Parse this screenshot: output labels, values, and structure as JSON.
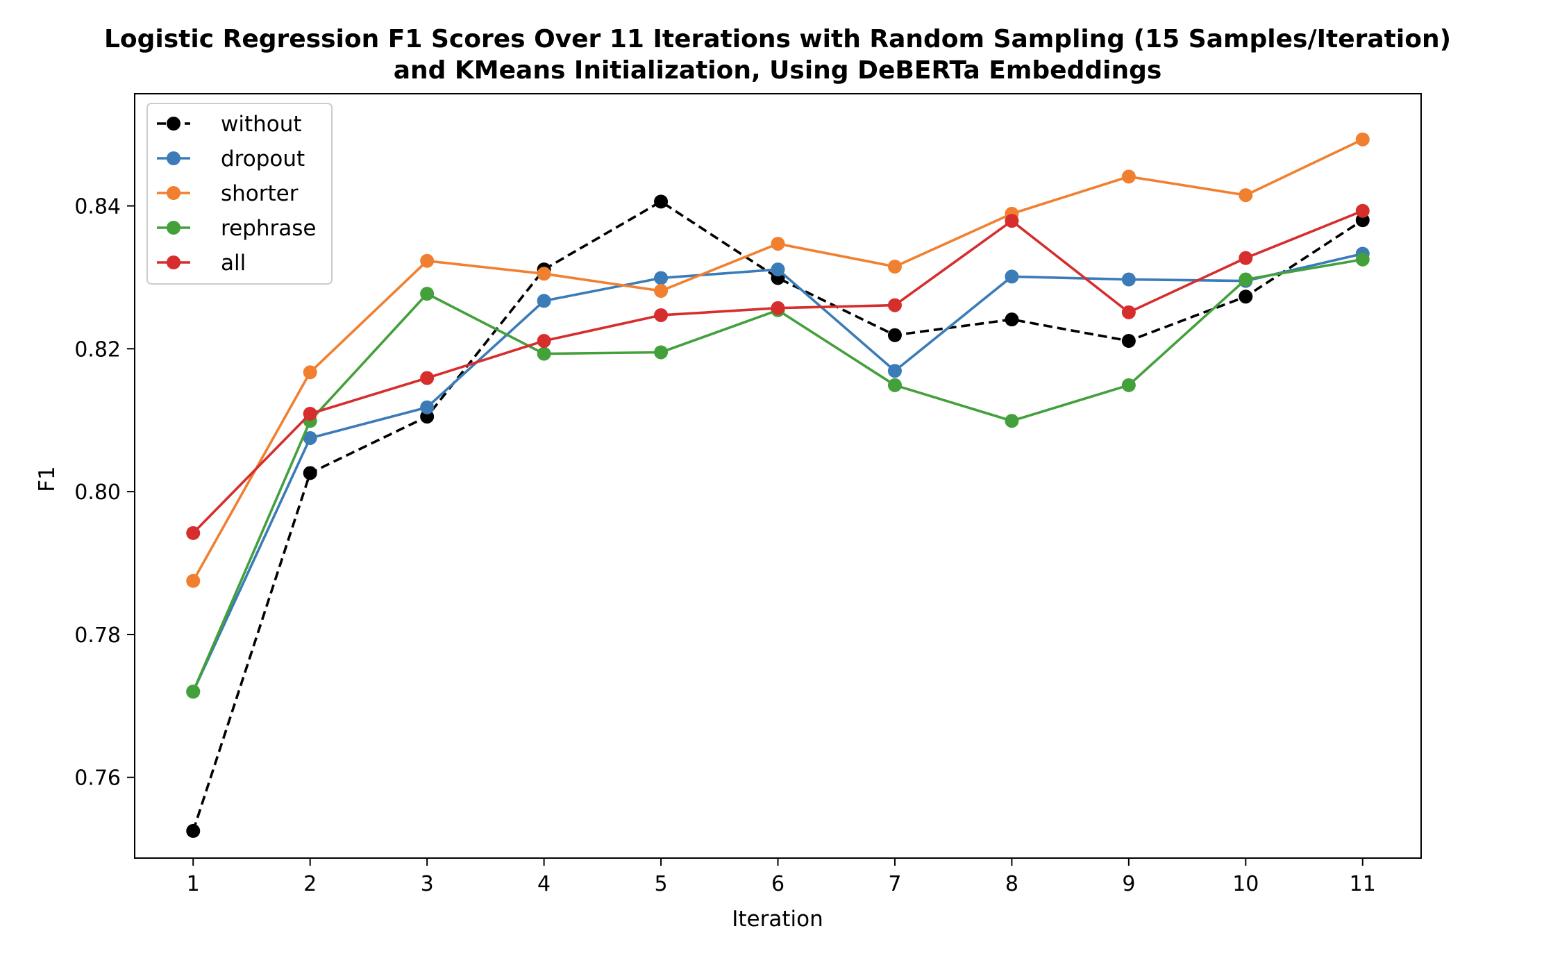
{
  "chart_data": {
    "type": "line",
    "title_line1": "Logistic Regression F1 Scores Over 11 Iterations with Random Sampling (15 Samples/Iteration)",
    "title_line2": "and KMeans Initialization, Using DeBERTa Embeddings",
    "xlabel": "Iteration",
    "ylabel": "F1",
    "x": [
      1,
      2,
      3,
      4,
      5,
      6,
      7,
      8,
      9,
      10,
      11
    ],
    "xlim": [
      0.5,
      11.5
    ],
    "ylim": [
      0.7487,
      0.8557
    ],
    "yticks": [
      0.76,
      0.78,
      0.8,
      0.82,
      0.84
    ],
    "ytick_labels": [
      "0.76",
      "0.78",
      "0.80",
      "0.82",
      "0.84"
    ],
    "xtick_labels": [
      "1",
      "2",
      "3",
      "4",
      "5",
      "6",
      "7",
      "8",
      "9",
      "10",
      "11"
    ],
    "grid": false,
    "legend_position": "upper-left",
    "series": [
      {
        "name": "without",
        "color": "#000000",
        "dashed": true,
        "values": [
          0.7525,
          0.8026,
          0.8105,
          0.8311,
          0.8406,
          0.8299,
          0.8219,
          0.8241,
          0.8211,
          0.8273,
          0.838
        ]
      },
      {
        "name": "dropout",
        "color": "#3a7bb8",
        "dashed": false,
        "values": [
          0.772,
          0.8075,
          0.8118,
          0.8267,
          0.8299,
          0.8311,
          0.8169,
          0.8301,
          0.8297,
          0.8295,
          0.8333
        ]
      },
      {
        "name": "shorter",
        "color": "#f08030",
        "dashed": false,
        "values": [
          0.7875,
          0.8167,
          0.8323,
          0.8305,
          0.8281,
          0.8347,
          0.8315,
          0.8389,
          0.8441,
          0.8415,
          0.8493
        ]
      },
      {
        "name": "rephrase",
        "color": "#43a03a",
        "dashed": false,
        "values": [
          0.772,
          0.8099,
          0.8277,
          0.8193,
          0.8195,
          0.8254,
          0.8149,
          0.8099,
          0.8149,
          0.8297,
          0.8325
        ]
      },
      {
        "name": "all",
        "color": "#d62d2d",
        "dashed": false,
        "values": [
          0.7942,
          0.8109,
          0.8159,
          0.8211,
          0.8247,
          0.8257,
          0.8261,
          0.8379,
          0.8251,
          0.8327,
          0.8393
        ]
      }
    ]
  }
}
